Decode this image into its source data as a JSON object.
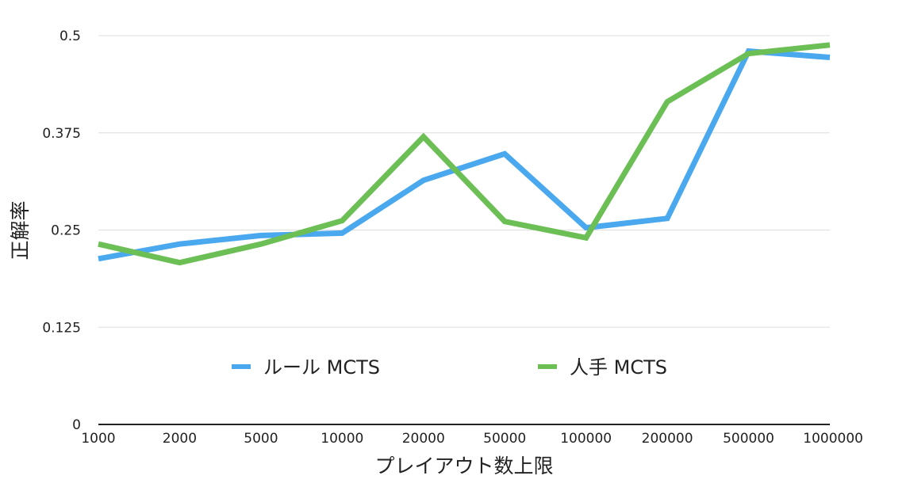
{
  "chart_data": {
    "type": "line",
    "title": "",
    "xlabel": "プレイアウト数上限",
    "ylabel": "正解率",
    "categories": [
      "1000",
      "2000",
      "5000",
      "10000",
      "20000",
      "50000",
      "100000",
      "200000",
      "500000",
      "1000000"
    ],
    "y_ticks": [
      "0",
      "0.125",
      "0.25",
      "0.375",
      "0.5"
    ],
    "ylim": [
      0,
      0.5
    ],
    "grid": true,
    "legend_position": "inside-bottom",
    "series": [
      {
        "name": "ルール MCTS",
        "color": "#4aa8ef",
        "values": [
          0.213,
          0.232,
          0.243,
          0.246,
          0.314,
          0.348,
          0.253,
          0.265,
          0.48,
          0.472
        ]
      },
      {
        "name": "人手 MCTS",
        "color": "#6cbf55",
        "values": [
          0.232,
          0.208,
          0.232,
          0.262,
          0.37,
          0.261,
          0.24,
          0.415,
          0.477,
          0.488
        ]
      }
    ]
  }
}
